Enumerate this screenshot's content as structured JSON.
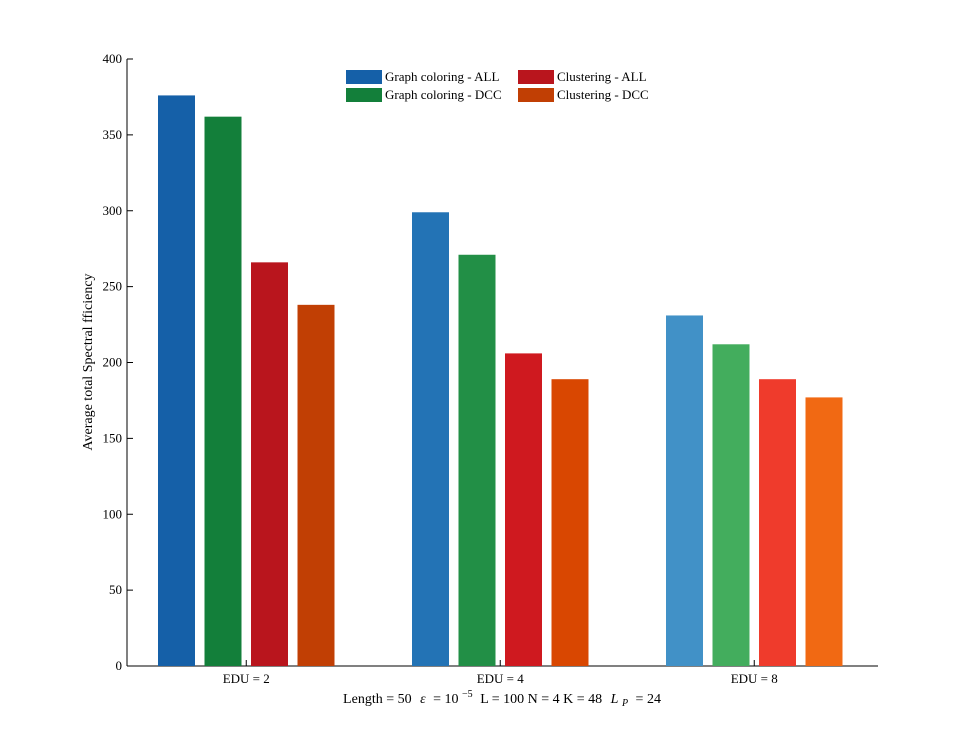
{
  "chart_data": {
    "type": "bar",
    "categories": [
      "EDU = 2",
      "EDU = 4",
      "EDU = 8"
    ],
    "series": [
      {
        "name": "Graph coloring - ALL",
        "values": [
          376,
          299,
          231
        ]
      },
      {
        "name": "Graph coloring - DCC",
        "values": [
          362,
          271,
          212
        ]
      },
      {
        "name": "Clustering - ALL",
        "values": [
          266,
          206,
          189
        ]
      },
      {
        "name": "Clustering - DCC",
        "values": [
          238,
          189,
          177
        ]
      }
    ],
    "bar_colors": [
      [
        "#1560a8",
        "#2373b5",
        "#4191c7"
      ],
      [
        "#137f3a",
        "#228f46",
        "#43ad5d"
      ],
      [
        "#b9151d",
        "#cf191f",
        "#ef3b2c"
      ],
      [
        "#c13f04",
        "#d94701",
        "#f16913"
      ]
    ],
    "legend_colors": [
      "#1560a8",
      "#137f3a",
      "#b9151d",
      "#c13f04"
    ],
    "ylabel": "Average total Spectral fficiency",
    "xlabel_parts": {
      "length": "Length = 50",
      "eps_symbol": "ε",
      "eps_value": "= 10",
      "eps_exp": "−5",
      "rest": "L = 100 N = 4 K = 48",
      "lp_symbol": "L",
      "lp_sub": "P",
      "lp_value": "= 24"
    },
    "ylim": [
      0,
      400
    ],
    "yticks": [
      0,
      50,
      100,
      150,
      200,
      250,
      300,
      350,
      400
    ],
    "grid": false,
    "legend_position": "top-center"
  }
}
